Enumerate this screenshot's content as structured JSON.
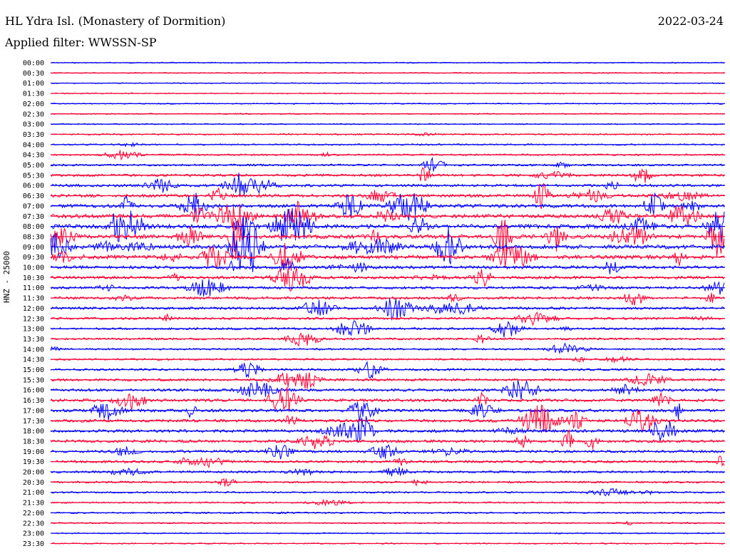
{
  "header": {
    "station": "HL Ydra Isl. (Monastery of Dormition)",
    "date": "2022-03-24",
    "filter": "Applied filter: WWSSN-SP"
  },
  "channel_label": "HNZ - 25000",
  "colors": {
    "even_hour": "#0000ff",
    "half_hour": "#ff0033"
  },
  "chart_data": {
    "type": "line",
    "description": "helicorder seismogram, one trace per 30 minutes",
    "row_labels": [
      "00:00",
      "00:30",
      "01:00",
      "01:30",
      "02:00",
      "02:30",
      "03:00",
      "03:30",
      "04:00",
      "04:30",
      "05:00",
      "05:30",
      "06:00",
      "06:30",
      "07:00",
      "07:30",
      "08:00",
      "08:30",
      "09:00",
      "09:30",
      "10:00",
      "10:30",
      "11:00",
      "11:30",
      "12:00",
      "12:30",
      "13:00",
      "13:30",
      "14:00",
      "14:30",
      "15:00",
      "15:30",
      "16:00",
      "16:30",
      "17:00",
      "17:30",
      "18:00",
      "18:30",
      "19:00",
      "19:30",
      "20:00",
      "20:30",
      "21:00",
      "21:30",
      "22:00",
      "22:30",
      "23:00",
      "23:30"
    ],
    "series_colors": [
      "#0000ff",
      "#ff0033"
    ],
    "activity_level": [
      0.05,
      0.05,
      0.05,
      0.05,
      0.08,
      0.08,
      0.1,
      0.15,
      0.2,
      0.25,
      0.35,
      0.45,
      0.55,
      0.65,
      0.8,
      0.9,
      1.0,
      1.0,
      1.0,
      0.9,
      0.7,
      0.6,
      0.55,
      0.5,
      0.5,
      0.45,
      0.4,
      0.35,
      0.3,
      0.3,
      0.4,
      0.5,
      0.6,
      0.65,
      0.65,
      0.65,
      0.65,
      0.6,
      0.55,
      0.5,
      0.4,
      0.3,
      0.25,
      0.2,
      0.2,
      0.15,
      0.1,
      0.1
    ]
  }
}
